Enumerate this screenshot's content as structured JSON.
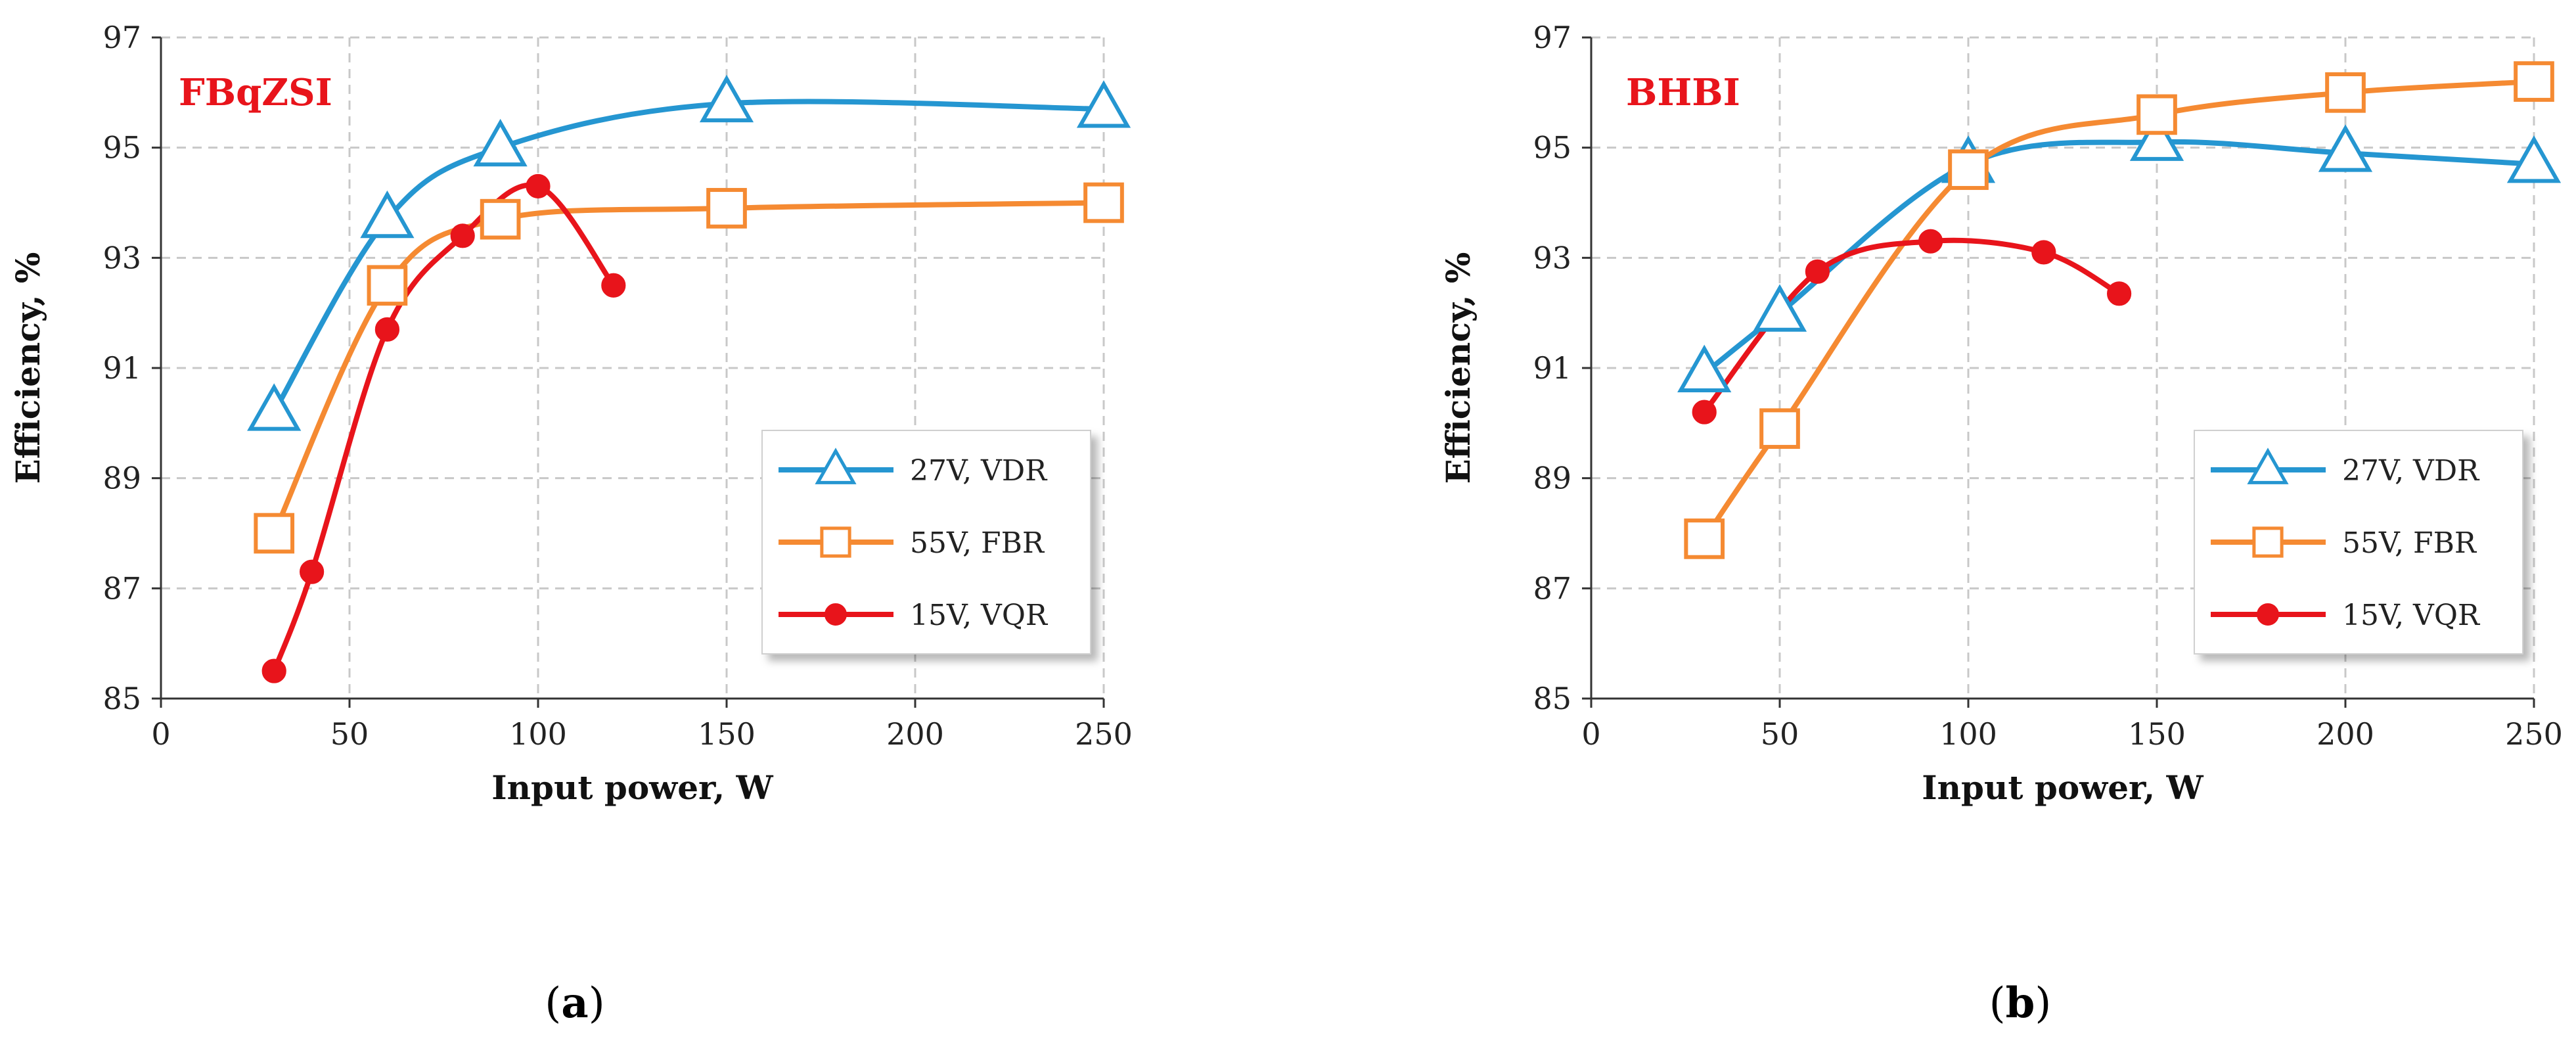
{
  "chart_data": [
    {
      "type": "line",
      "id": "a",
      "title": "FBqZSI",
      "title_color": "#e8141b",
      "caption_letter": "a",
      "xlabel": "Input power, W",
      "ylabel": "Efficiency, %",
      "xlim": [
        0,
        250
      ],
      "ylim": [
        85,
        97
      ],
      "xticks": [
        0,
        50,
        100,
        150,
        200,
        250
      ],
      "yticks": [
        85,
        87,
        89,
        91,
        93,
        95,
        97
      ],
      "grid": true,
      "legend_position": "lower-right",
      "series": [
        {
          "name": "27V, VDR",
          "color": "#2596d1",
          "marker": "triangle",
          "x": [
            30,
            60,
            90,
            150,
            250
          ],
          "y": [
            90.2,
            93.7,
            95.0,
            95.8,
            95.7
          ]
        },
        {
          "name": "55V, FBR",
          "color": "#f58a32",
          "marker": "square",
          "x": [
            30,
            60,
            90,
            150,
            250
          ],
          "y": [
            88.0,
            92.5,
            93.7,
            93.9,
            94.0
          ]
        },
        {
          "name": "15V, VQR",
          "color": "#e8141b",
          "marker": "circle",
          "x": [
            30,
            40,
            60,
            80,
            100,
            120
          ],
          "y": [
            85.5,
            87.3,
            91.7,
            93.4,
            94.3,
            92.5
          ]
        }
      ]
    },
    {
      "type": "line",
      "id": "b",
      "title": "BHBI",
      "title_color": "#e8141b",
      "caption_letter": "b",
      "xlabel": "Input power, W",
      "ylabel": "Efficiency, %",
      "xlim": [
        0,
        250
      ],
      "ylim": [
        85,
        97
      ],
      "xticks": [
        0,
        50,
        100,
        150,
        200,
        250
      ],
      "yticks": [
        85,
        87,
        89,
        91,
        93,
        95,
        97
      ],
      "grid": true,
      "legend_position": "lower-right",
      "series": [
        {
          "name": "27V, VDR",
          "color": "#2596d1",
          "marker": "triangle",
          "x": [
            30,
            50,
            100,
            150,
            200,
            250
          ],
          "y": [
            90.9,
            92.0,
            94.7,
            95.1,
            94.9,
            94.7
          ]
        },
        {
          "name": "55V, FBR",
          "color": "#f58a32",
          "marker": "square",
          "x": [
            30,
            50,
            100,
            150,
            200,
            250
          ],
          "y": [
            87.9,
            89.9,
            94.6,
            95.6,
            96.0,
            96.2
          ]
        },
        {
          "name": "15V, VQR",
          "color": "#e8141b",
          "marker": "circle",
          "x": [
            30,
            60,
            90,
            120,
            140
          ],
          "y": [
            90.2,
            92.75,
            93.3,
            93.1,
            92.35
          ]
        }
      ]
    }
  ]
}
